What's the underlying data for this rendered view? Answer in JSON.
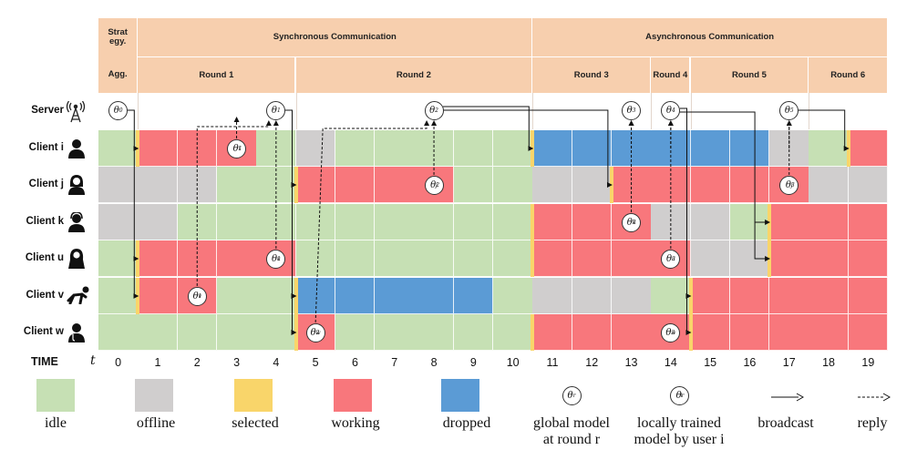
{
  "header": {
    "strategy_label": "Strat egy.",
    "agg_label": "Agg.",
    "sync_label": "Synchronous Communication",
    "async_label": "Asynchronous Communication",
    "rounds": [
      {
        "label": "Round 1",
        "start": 1,
        "end": 4
      },
      {
        "label": "Round 2",
        "start": 5,
        "end": 10
      },
      {
        "label": "Round 3",
        "start": 11,
        "end": 13
      },
      {
        "label": "Round 4",
        "start": 14,
        "end": 14
      },
      {
        "label": "Round 5",
        "start": 15,
        "end": 17
      },
      {
        "label": "Round 6",
        "start": 18,
        "end": 19
      }
    ]
  },
  "rows": [
    {
      "key": "server",
      "label": "Server",
      "icon": "antenna-icon"
    },
    {
      "key": "i",
      "label": "Client i",
      "icon": "person-icon"
    },
    {
      "key": "j",
      "label": "Client j",
      "icon": "woman-icon"
    },
    {
      "key": "k",
      "label": "Client k",
      "icon": "operator-icon"
    },
    {
      "key": "u",
      "label": "Client u",
      "icon": "woman-hijab-icon"
    },
    {
      "key": "v",
      "label": "Client v",
      "icon": "crawling-person-icon"
    },
    {
      "key": "w",
      "label": "Client w",
      "icon": "doctor-icon"
    }
  ],
  "time": {
    "label": "TIME",
    "var": "t",
    "ticks": [
      "0",
      "1",
      "2",
      "3",
      "4",
      "5",
      "6",
      "7",
      "8",
      "9",
      "10",
      "11",
      "12",
      "13",
      "14",
      "15",
      "16",
      "17",
      "18",
      "19"
    ]
  },
  "states": {
    "i": [
      "idle",
      "working",
      "working",
      "working",
      "idle",
      "offline",
      "idle",
      "idle",
      "idle",
      "idle",
      "idle",
      "dropped",
      "dropped",
      "dropped",
      "dropped",
      "dropped",
      "dropped",
      "offline",
      "idle",
      "working"
    ],
    "j": [
      "offline",
      "offline",
      "offline",
      "idle",
      "idle",
      "working",
      "working",
      "working",
      "working",
      "idle",
      "idle",
      "offline",
      "offline",
      "working",
      "working",
      "working",
      "working",
      "working",
      "offline",
      "offline"
    ],
    "k": [
      "offline",
      "offline",
      "idle",
      "idle",
      "idle",
      "idle",
      "idle",
      "idle",
      "idle",
      "idle",
      "idle",
      "working",
      "working",
      "working",
      "offline",
      "offline",
      "idle",
      "working",
      "working",
      "working"
    ],
    "u": [
      "idle",
      "working",
      "working",
      "working",
      "working",
      "idle",
      "idle",
      "idle",
      "idle",
      "idle",
      "idle",
      "working",
      "working",
      "working",
      "working",
      "offline",
      "offline",
      "working",
      "working",
      "working"
    ],
    "v": [
      "idle",
      "working",
      "working",
      "idle",
      "idle",
      "dropped",
      "dropped",
      "dropped",
      "dropped",
      "dropped",
      "idle",
      "offline",
      "offline",
      "offline",
      "idle",
      "working",
      "working",
      "working",
      "working",
      "working"
    ],
    "w": [
      "idle",
      "idle",
      "idle",
      "idle",
      "idle",
      "working",
      "idle",
      "idle",
      "idle",
      "idle",
      "idle",
      "working",
      "working",
      "working",
      "working",
      "working",
      "working",
      "working",
      "working",
      "working"
    ]
  },
  "selected_marks": [
    {
      "row": "i",
      "t": 1
    },
    {
      "row": "u",
      "t": 1
    },
    {
      "row": "v",
      "t": 1
    },
    {
      "row": "j",
      "t": 5
    },
    {
      "row": "v",
      "t": 5
    },
    {
      "row": "w",
      "t": 5
    },
    {
      "row": "i",
      "t": 11
    },
    {
      "row": "k",
      "t": 11
    },
    {
      "row": "u",
      "t": 11
    },
    {
      "row": "w",
      "t": 11
    },
    {
      "row": "j",
      "t": 13
    },
    {
      "row": "v",
      "t": 15
    },
    {
      "row": "w",
      "t": 15
    },
    {
      "row": "k",
      "t": 17
    },
    {
      "row": "u",
      "t": 17
    },
    {
      "row": "i",
      "t": 19
    }
  ],
  "global_models": [
    {
      "row": "server",
      "t": 0,
      "base": "θ",
      "sup": "0",
      "sub": ""
    },
    {
      "row": "server",
      "t": 4,
      "base": "θ",
      "sup": "1",
      "sub": ""
    },
    {
      "row": "server",
      "t": 8,
      "base": "θ",
      "sup": "2",
      "sub": ""
    },
    {
      "row": "server",
      "t": 13,
      "base": "θ",
      "sup": "3",
      "sub": ""
    },
    {
      "row": "server",
      "t": 14,
      "base": "θ",
      "sup": "4",
      "sub": ""
    },
    {
      "row": "server",
      "t": 17,
      "base": "θ",
      "sup": "5",
      "sub": ""
    }
  ],
  "local_models": [
    {
      "row": "i",
      "t": 3,
      "base": "θ",
      "sup": "1",
      "sub": "i"
    },
    {
      "row": "u",
      "t": 4,
      "base": "θ",
      "sup": "1",
      "sub": "u"
    },
    {
      "row": "v",
      "t": 2,
      "base": "θ",
      "sup": "1",
      "sub": "v"
    },
    {
      "row": "j",
      "t": 8,
      "base": "θ",
      "sup": "2",
      "sub": "j"
    },
    {
      "row": "w",
      "t": 5,
      "base": "θ",
      "sup": "2",
      "sub": "w"
    },
    {
      "row": "k",
      "t": 13,
      "base": "θ",
      "sup": "3",
      "sub": "k"
    },
    {
      "row": "u",
      "t": 14,
      "base": "θ",
      "sup": "3",
      "sub": "u"
    },
    {
      "row": "w",
      "t": 14,
      "base": "θ",
      "sup": "3",
      "sub": "w"
    },
    {
      "row": "j",
      "t": 17,
      "base": "θ",
      "sup": "3",
      "sub": "j"
    }
  ],
  "legend": [
    {
      "key": "idle",
      "label": "idle"
    },
    {
      "key": "offline",
      "label": "offline"
    },
    {
      "key": "selected",
      "label": "selected"
    },
    {
      "key": "working",
      "label": "working"
    },
    {
      "key": "dropped",
      "label": "dropped"
    },
    {
      "key": "global",
      "label": "global model",
      "label2": "at round r"
    },
    {
      "key": "local",
      "label": "locally trained",
      "label2": "model by user i"
    },
    {
      "key": "broadcast",
      "label": "broadcast"
    },
    {
      "key": "reply",
      "label": "reply"
    }
  ],
  "colors": {
    "idle": "#c6e0b4",
    "offline": "#d0cece",
    "selected": "#f9d56a",
    "working": "#f8777c",
    "dropped": "#5b9bd5",
    "header": "#f7cfae"
  }
}
